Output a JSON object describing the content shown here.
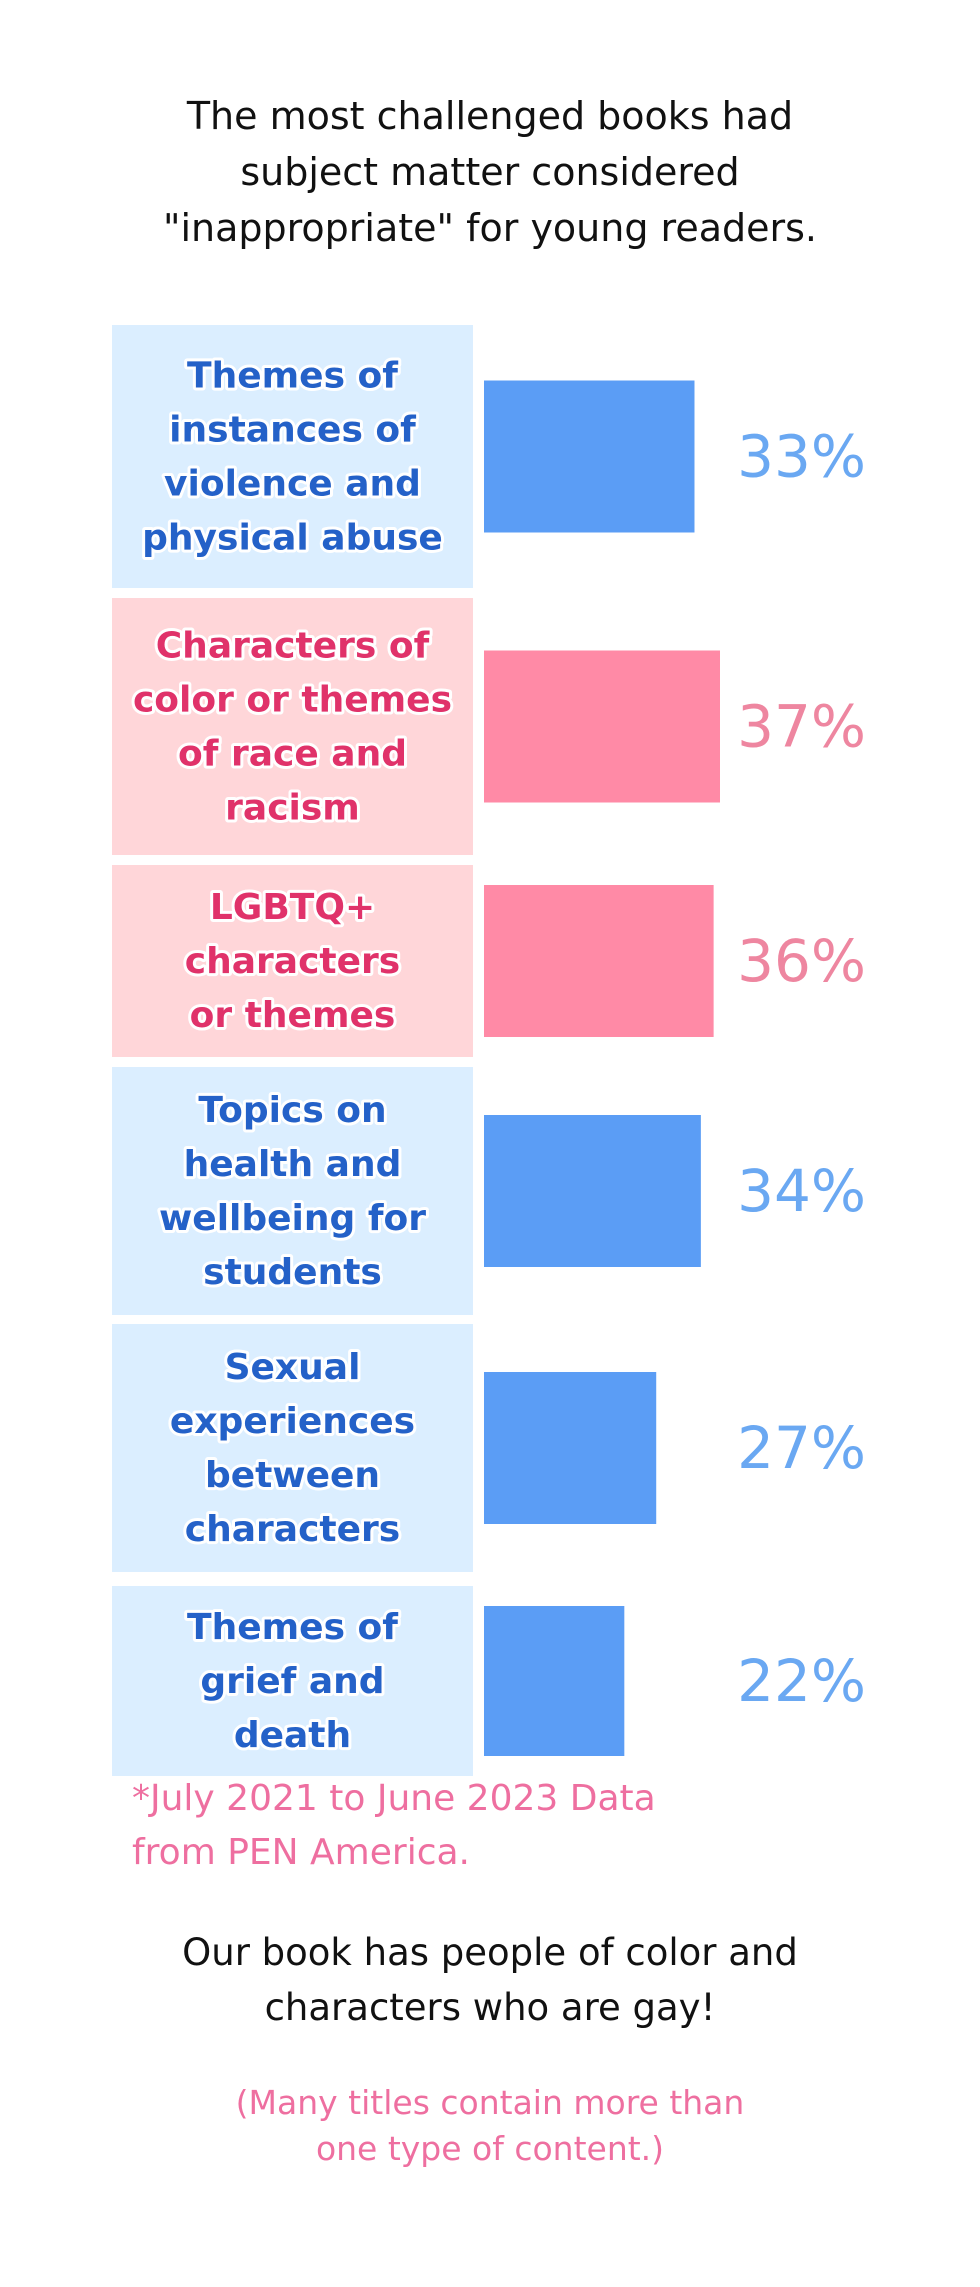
{
  "header": {
    "title_lines": [
      "The most challenged books had",
      "subject matter considered",
      "\"inappropriate\" for young readers."
    ]
  },
  "chart_data": {
    "type": "bar",
    "orientation": "horizontal",
    "xlim": [
      0,
      40
    ],
    "categories": [
      {
        "lines": [
          "Themes of",
          "instances of",
          "violence and",
          "physical abuse"
        ],
        "value": 33,
        "label": "33%",
        "color": "#5b9df5",
        "panel": "#dbeeff",
        "text": "#2461c8",
        "value_color": "#6aa8f2"
      },
      {
        "lines": [
          "Characters of",
          "color or themes",
          "of race and",
          "racism"
        ],
        "value": 37,
        "label": "37%",
        "color": "#ff8aa6",
        "panel": "#ffd6d9",
        "text": "#e0326a",
        "value_color": "#ee86a0"
      },
      {
        "lines": [
          "LGBTQ+",
          "characters",
          "or themes"
        ],
        "value": 36,
        "label": "36%",
        "color": "#ff8aa6",
        "panel": "#ffd6d9",
        "text": "#e0326a",
        "value_color": "#ee86a0"
      },
      {
        "lines": [
          "Topics on",
          "health and",
          "wellbeing for",
          "students"
        ],
        "value": 34,
        "label": "34%",
        "color": "#5b9df5",
        "panel": "#dbeeff",
        "text": "#2461c8",
        "value_color": "#6aa8f2"
      },
      {
        "lines": [
          "Sexual",
          "experiences",
          "between",
          "characters"
        ],
        "value": 27,
        "label": "27%",
        "color": "#5b9df5",
        "panel": "#dbeeff",
        "text": "#2461c8",
        "value_color": "#6aa8f2"
      },
      {
        "lines": [
          "Themes of",
          "grief and",
          "death"
        ],
        "value": 22,
        "label": "22%",
        "color": "#5b9df5",
        "panel": "#dbeeff",
        "text": "#2461c8",
        "value_color": "#6aa8f2"
      }
    ]
  },
  "source": {
    "lines": [
      "*July 2021 to June 2023 Data",
      "from PEN America."
    ]
  },
  "footer": {
    "lines": [
      "Our book has people of color and",
      "characters who are gay!"
    ]
  },
  "note": {
    "lines": [
      "(Many titles contain more than",
      "one type of content.)"
    ]
  }
}
